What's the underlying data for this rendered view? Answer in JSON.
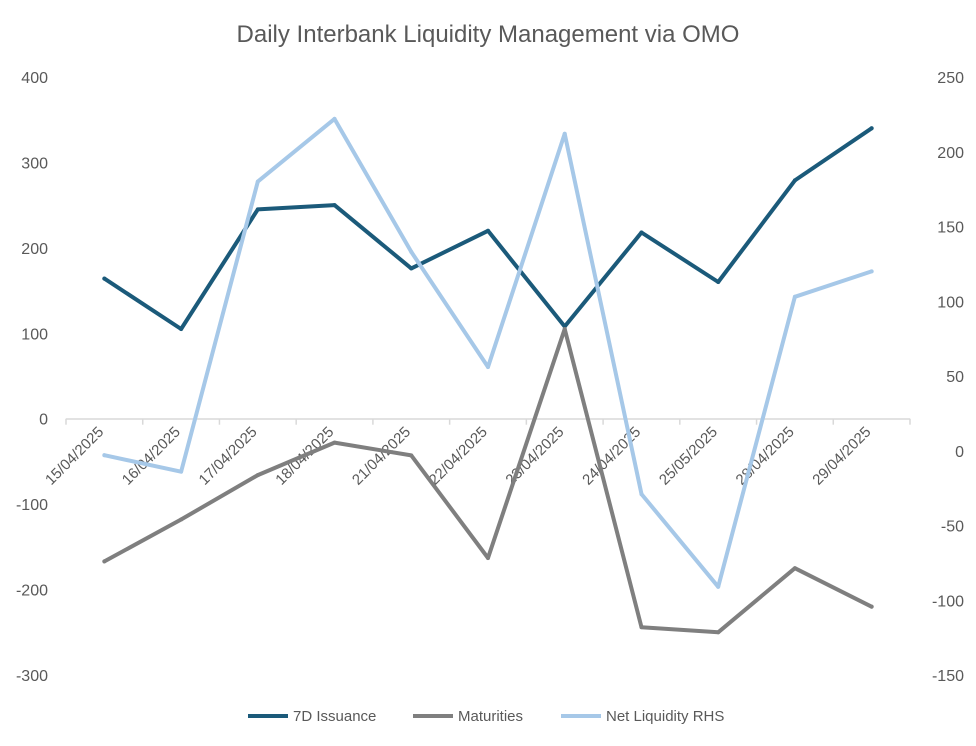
{
  "chart_data": {
    "type": "line",
    "title": "Daily Interbank Liquidity Management via OMO",
    "categories": [
      "15/04/2025",
      "16/04/2025",
      "17/04/2025",
      "18/04/2025",
      "21/04/2025",
      "22/04/2025",
      "23/04/2025",
      "24/04/2025",
      "25/05/2025",
      "28/04/2025",
      "29/04/2025"
    ],
    "y_left": {
      "ticks": [
        "400",
        "300",
        "200",
        "100",
        "0",
        "-100",
        "-200",
        "-300"
      ],
      "min": -300,
      "max": 400
    },
    "y_right": {
      "ticks": [
        "250",
        "200",
        "150",
        "100",
        "50",
        "0",
        "-50",
        "-100",
        "-150"
      ],
      "min": -150,
      "max": 250
    },
    "grid": false,
    "legend_position": "bottom",
    "series": [
      {
        "name": "7D Issuance",
        "axis": "left",
        "color": "#1b5a7a",
        "values": [
          164,
          105,
          245,
          250,
          176,
          220,
          108,
          218,
          160,
          279,
          340
        ]
      },
      {
        "name": "Maturities",
        "axis": "left",
        "color": "#7f7f7f",
        "values": [
          -167,
          -118,
          -66,
          -28,
          -43,
          -163,
          105,
          -244,
          -250,
          -175,
          -220
        ]
      },
      {
        "name": "Net Liquidity RHS",
        "axis": "right",
        "color": "#a6c8e8",
        "values": [
          -3,
          -14,
          180,
          222,
          133,
          56,
          212,
          -29,
          -91,
          103,
          120
        ]
      }
    ]
  }
}
